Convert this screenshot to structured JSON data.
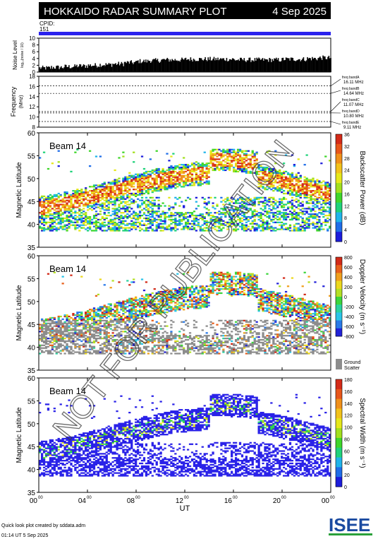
{
  "header": {
    "title": "HOKKAIDO RADAR SUMMARY PLOT",
    "date": "4 Sep 2025",
    "cpid_label": "CPID:",
    "cpid_value": "151"
  },
  "colors": {
    "header_bg": "#000000",
    "cpid_bar": "#2a22ee",
    "ground_scatter": "#8c8c8c",
    "noise_bars": "#000000"
  },
  "noise_panel": {
    "ylabel": "Noise Level",
    "ylabel_sub": "log₁₀(noise / 10)",
    "yticks": [
      "10",
      "8",
      "6",
      "4",
      "2",
      "0"
    ]
  },
  "freq_panel": {
    "ylabel": "Frequency",
    "ylabel_unit": "(MHz)",
    "yticks": [
      "18",
      "16",
      "14",
      "12",
      "10",
      "8"
    ],
    "bands": [
      {
        "name": "freq bandA",
        "value": "16.11 MHz"
      },
      {
        "name": "freq bandB",
        "value": "14.64 MHz"
      },
      {
        "name": "freq bandC",
        "value": "11.07 MHz"
      },
      {
        "name": "freq bandD",
        "value": "10.80 MHz"
      },
      {
        "name": "freq bandE",
        "value": "9.11 MHz"
      }
    ]
  },
  "beam_panels": [
    {
      "beam_label": "Beam 14",
      "ylabel": "Magnetic Latitude",
      "yticks": [
        "60",
        "55",
        "50",
        "45",
        "40",
        "35"
      ],
      "cbar_title": "Backscatter Power (dB)",
      "cbar_ticks": [
        "36",
        "32",
        "28",
        "24",
        "20",
        "16",
        "12",
        "8",
        "4",
        "0"
      ]
    },
    {
      "beam_label": "Beam 14",
      "ylabel": "Magnetic Latitude",
      "yticks": [
        "60",
        "55",
        "50",
        "45",
        "40",
        "35"
      ],
      "cbar_title": "Doppler Velocity (m s⁻¹)",
      "cbar_ticks": [
        "800",
        "600",
        "400",
        "200",
        "0",
        "-200",
        "-400",
        "-600",
        "-800"
      ],
      "gs_label_1": "Ground",
      "gs_label_2": "Scatter"
    },
    {
      "beam_label": "Beam 14",
      "ylabel": "Magnetic Latitude",
      "yticks": [
        "60",
        "55",
        "50",
        "45",
        "40",
        "35"
      ],
      "cbar_title": "Spectral Width (m s⁻¹)",
      "cbar_ticks": [
        "180",
        "160",
        "140",
        "120",
        "100",
        "80",
        "60",
        "40",
        "20",
        "0"
      ]
    }
  ],
  "x_axis": {
    "ticks": [
      {
        "h": "00",
        "m": "00"
      },
      {
        "h": "04",
        "m": "00"
      },
      {
        "h": "08",
        "m": "00"
      },
      {
        "h": "12",
        "m": "00"
      },
      {
        "h": "16",
        "m": "00"
      },
      {
        "h": "20",
        "m": "00"
      },
      {
        "h": "00",
        "m": "00"
      }
    ],
    "label": "UT"
  },
  "watermark": "NOT FOR PUBLICATION",
  "footer": {
    "line1": "Quick look plot created by sddata.adm",
    "line2": "01:14 UT  5 Sep 2025",
    "logo": "ISEE"
  },
  "chart_data": [
    {
      "type": "bar",
      "title": "Noise Level",
      "ylim": [
        0,
        10
      ],
      "x_range_hours": [
        0,
        24
      ],
      "values_hourly": [
        1.2,
        1.4,
        1.6,
        1.8,
        2.0,
        2.2,
        2.4,
        2.8,
        3.2,
        3.4,
        3.6,
        3.6,
        3.8,
        3.8,
        3.8,
        3.8,
        3.6,
        3.6,
        3.6,
        3.6,
        3.8,
        3.8,
        4.0,
        4.2
      ]
    },
    {
      "type": "line",
      "title": "Frequency",
      "ylim": [
        8,
        18
      ],
      "unit": "MHz",
      "series": [
        {
          "name": "freq bandA",
          "values": [
            16.11
          ]
        },
        {
          "name": "freq bandB",
          "values": [
            14.64
          ]
        },
        {
          "name": "freq bandC",
          "values": [
            11.07
          ]
        },
        {
          "name": "freq bandD",
          "values": [
            10.8
          ]
        },
        {
          "name": "freq bandE",
          "values": [
            9.11
          ]
        }
      ]
    },
    {
      "type": "heatmap",
      "title": "Backscatter Power (dB)",
      "ylim": [
        35,
        60
      ],
      "zlim": [
        0,
        36
      ],
      "x_range_hours": [
        0,
        24
      ]
    },
    {
      "type": "heatmap",
      "title": "Doppler Velocity (m s⁻¹)",
      "ylim": [
        35,
        60
      ],
      "zlim": [
        -800,
        800
      ],
      "x_range_hours": [
        0,
        24
      ]
    },
    {
      "type": "heatmap",
      "title": "Spectral Width (m s⁻¹)",
      "ylim": [
        35,
        60
      ],
      "zlim": [
        0,
        180
      ],
      "x_range_hours": [
        0,
        24
      ]
    }
  ]
}
